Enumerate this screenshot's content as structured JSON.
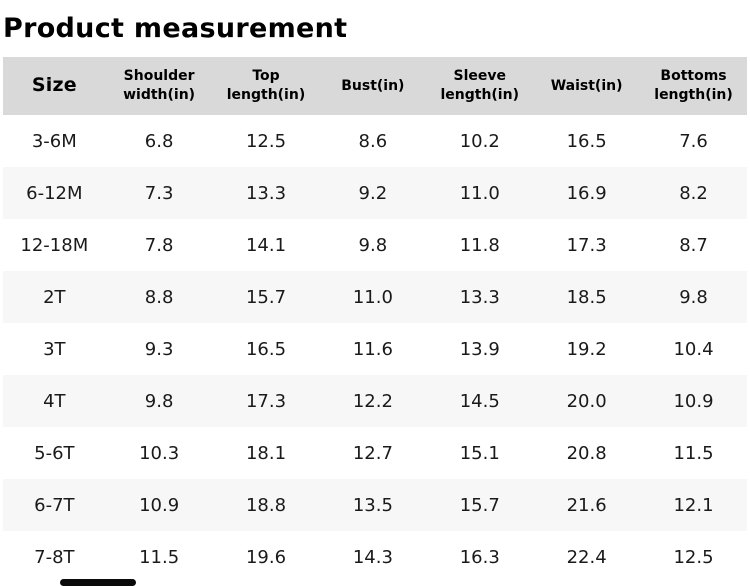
{
  "page": {
    "title": "Product measurement"
  },
  "table": {
    "columns": [
      "Size",
      "Shoulder width(in)",
      "Top length(in)",
      "Bust(in)",
      "Sleeve length(in)",
      "Waist(in)",
      "Bottoms length(in)"
    ],
    "rows": [
      [
        "3-6M",
        "6.8",
        "12.5",
        "8.6",
        "10.2",
        "16.5",
        "7.6"
      ],
      [
        "6-12M",
        "7.3",
        "13.3",
        "9.2",
        "11.0",
        "16.9",
        "8.2"
      ],
      [
        "12-18M",
        "7.8",
        "14.1",
        "9.8",
        "11.8",
        "17.3",
        "8.7"
      ],
      [
        "2T",
        "8.8",
        "15.7",
        "11.0",
        "13.3",
        "18.5",
        "9.8"
      ],
      [
        "3T",
        "9.3",
        "16.5",
        "11.6",
        "13.9",
        "19.2",
        "10.4"
      ],
      [
        "4T",
        "9.8",
        "17.3",
        "12.2",
        "14.5",
        "20.0",
        "10.9"
      ],
      [
        "5-6T",
        "10.3",
        "18.1",
        "12.7",
        "15.1",
        "20.8",
        "11.5"
      ],
      [
        "6-7T",
        "10.9",
        "18.8",
        "13.5",
        "15.7",
        "21.6",
        "12.1"
      ],
      [
        "7-8T",
        "11.5",
        "19.6",
        "14.3",
        "16.3",
        "22.4",
        "12.5"
      ]
    ]
  },
  "colors": {
    "header_bg": "#d9d9d9",
    "stripe_bg": "#f7f7f7",
    "text": "#1a1a1a",
    "scrollbar": "#0a0a0a"
  }
}
